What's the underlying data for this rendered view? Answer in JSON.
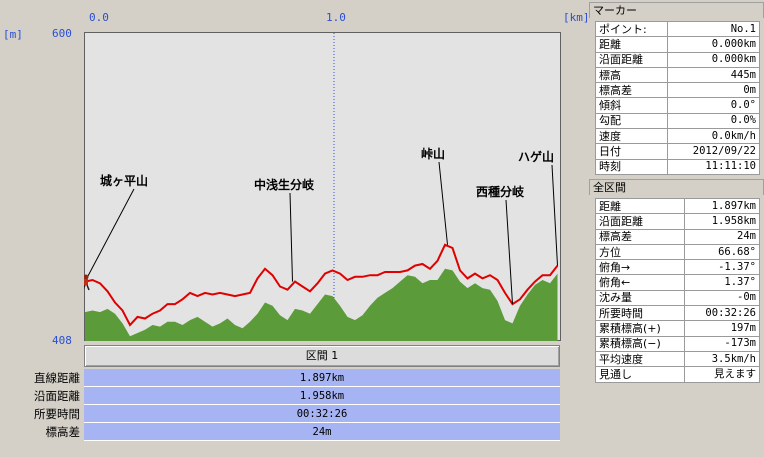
{
  "chart_data": {
    "type": "area",
    "x_unit": "[km]",
    "y_unit": "[m]",
    "x_ticks": [
      "0.0",
      "1.0"
    ],
    "y_max_label": "600",
    "y_min_label": "408",
    "xlim": [
      0,
      1.9
    ],
    "ylim": [
      408,
      600
    ],
    "annotations": [
      {
        "label": "城ヶ平山",
        "x": 0.0
      },
      {
        "label": "中浅生分岐",
        "x": 0.83
      },
      {
        "label": "峠山",
        "x": 1.45
      },
      {
        "label": "西種分岐",
        "x": 1.71
      },
      {
        "label": "ハゲ山",
        "x": 1.89
      }
    ],
    "series": [
      {
        "style": "red-line",
        "x": [
          0,
          0.03,
          0.06,
          0.09,
          0.12,
          0.15,
          0.18,
          0.21,
          0.24,
          0.27,
          0.3,
          0.33,
          0.36,
          0.39,
          0.42,
          0.45,
          0.48,
          0.51,
          0.54,
          0.57,
          0.6,
          0.63,
          0.66,
          0.69,
          0.72,
          0.75,
          0.78,
          0.81,
          0.84,
          0.87,
          0.9,
          0.93,
          0.96,
          0.99,
          1.02,
          1.05,
          1.08,
          1.11,
          1.14,
          1.17,
          1.2,
          1.23,
          1.26,
          1.29,
          1.32,
          1.35,
          1.38,
          1.41,
          1.44,
          1.47,
          1.5,
          1.53,
          1.56,
          1.59,
          1.62,
          1.65,
          1.68,
          1.71,
          1.74,
          1.77,
          1.8,
          1.83,
          1.86,
          1.89
        ],
        "y": [
          445,
          446,
          444,
          439,
          432,
          427,
          418,
          423,
          422,
          425,
          427,
          431,
          431,
          434,
          438,
          436,
          438,
          437,
          438,
          437,
          436,
          437,
          438,
          447,
          453,
          449,
          442,
          440,
          445,
          442,
          439,
          444,
          450,
          452,
          450,
          446,
          448,
          448,
          449,
          449,
          451,
          451,
          451,
          452,
          455,
          456,
          453,
          458,
          468,
          466,
          452,
          447,
          450,
          447,
          449,
          446,
          438,
          431,
          434,
          440,
          445,
          449,
          449,
          455
        ]
      },
      {
        "style": "green-area",
        "x": [
          0,
          0.03,
          0.06,
          0.09,
          0.12,
          0.15,
          0.18,
          0.21,
          0.24,
          0.27,
          0.3,
          0.33,
          0.36,
          0.39,
          0.42,
          0.45,
          0.48,
          0.51,
          0.54,
          0.57,
          0.6,
          0.63,
          0.66,
          0.69,
          0.72,
          0.75,
          0.78,
          0.81,
          0.84,
          0.87,
          0.9,
          0.93,
          0.96,
          0.99,
          1.02,
          1.05,
          1.08,
          1.11,
          1.14,
          1.17,
          1.2,
          1.23,
          1.26,
          1.29,
          1.32,
          1.35,
          1.38,
          1.41,
          1.44,
          1.47,
          1.5,
          1.53,
          1.56,
          1.59,
          1.62,
          1.65,
          1.68,
          1.71,
          1.74,
          1.77,
          1.8,
          1.83,
          1.86,
          1.89
        ],
        "y": [
          426,
          427,
          426,
          428,
          425,
          419,
          411,
          413,
          415,
          418,
          417,
          420,
          420,
          418,
          421,
          423,
          420,
          417,
          419,
          422,
          418,
          416,
          420,
          425,
          432,
          430,
          424,
          421,
          428,
          427,
          425,
          431,
          437,
          436,
          430,
          423,
          421,
          424,
          430,
          435,
          438,
          441,
          445,
          449,
          448,
          444,
          446,
          446,
          453,
          452,
          445,
          441,
          444,
          441,
          440,
          433,
          421,
          419,
          430,
          437,
          443,
          446,
          444,
          450
        ]
      }
    ]
  },
  "marker": {
    "title": "マーカー",
    "rows": [
      {
        "label": "ポイント:",
        "value": "No.1"
      },
      {
        "label": "距離",
        "value": "0.000km"
      },
      {
        "label": "沿面距離",
        "value": "0.000km"
      },
      {
        "label": "標高",
        "value": "445m"
      },
      {
        "label": "標高差",
        "value": "0m"
      },
      {
        "label": "傾斜",
        "value": "0.0°"
      },
      {
        "label": "勾配",
        "value": "0.0%"
      },
      {
        "label": "速度",
        "value": "0.0km/h"
      },
      {
        "label": "日付",
        "value": "2012/09/22"
      },
      {
        "label": "時刻",
        "value": "11:11:10"
      }
    ]
  },
  "all_section": {
    "title": "全区間",
    "rows": [
      {
        "label": "距離",
        "value": "1.897km"
      },
      {
        "label": "沿面距離",
        "value": "1.958km"
      },
      {
        "label": "標高差",
        "value": "24m"
      },
      {
        "label": "方位",
        "value": "66.68°"
      },
      {
        "label": "俯角→",
        "value": "-1.37°"
      },
      {
        "label": "俯角←",
        "value": "1.37°"
      },
      {
        "label": "沈み量",
        "value": "-0m"
      },
      {
        "label": "所要時間",
        "value": "00:32:26"
      },
      {
        "label": "累積標高(+)",
        "value": "197m"
      },
      {
        "label": "累積標高(−)",
        "value": "-173m"
      },
      {
        "label": "平均速度",
        "value": "3.5km/h"
      },
      {
        "label": "見通し",
        "value": "見えます"
      }
    ]
  },
  "segment": {
    "header": "区間 1",
    "rows": [
      {
        "label": "直線距離",
        "value": "1.897km"
      },
      {
        "label": "沿面距離",
        "value": "1.958km"
      },
      {
        "label": "所要時間",
        "value": "00:32:26"
      },
      {
        "label": "標高差",
        "value": "24m"
      }
    ]
  },
  "colors": {
    "profile_line": "#e00000",
    "ground_fill": "#5b9b3a",
    "plot_bg": "#e3e3e3",
    "segment_bg": "#a7b4f4",
    "axis_text": "#2a4fd0"
  }
}
